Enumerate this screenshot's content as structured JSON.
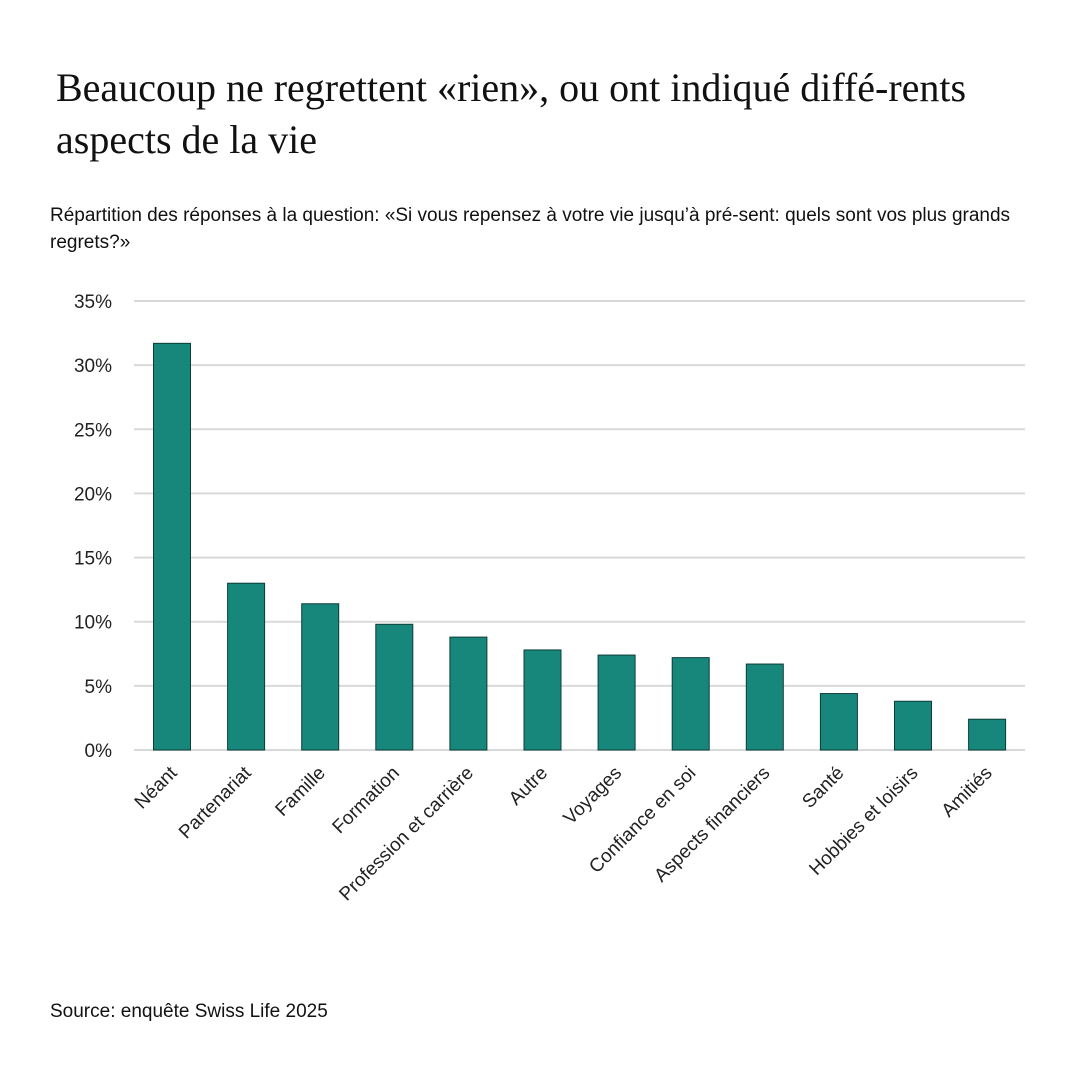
{
  "title": "Beaucoup ne regrettent «rien», ou ont indiqué diffé-rents aspects de la vie",
  "subtitle": "Répartition des réponses à la question: «Si vous repensez à votre vie jusqu’à pré-sent: quels sont vos plus grands regrets?»",
  "source": "Source: enquête Swiss Life 2025",
  "colors": {
    "bar": "#17877c",
    "bar_stroke": "#0d3d38",
    "grid": "#d9d9d9"
  },
  "chart_data": {
    "type": "bar",
    "categories": [
      "Néant",
      "Partenariat",
      "Famille",
      "Formation",
      "Profession et carrière",
      "Autre",
      "Voyages",
      "Confiance en soi",
      "Aspects financiers",
      "Santé",
      "Hobbies et loisirs",
      "Amitiés"
    ],
    "values": [
      31.7,
      13.0,
      11.4,
      9.8,
      8.8,
      7.8,
      7.4,
      7.2,
      6.7,
      4.4,
      3.8,
      2.4
    ],
    "ylim": [
      0,
      35
    ],
    "yticks": [
      "0%",
      "5%",
      "10%",
      "15%",
      "20%",
      "25%",
      "30%",
      "35%"
    ],
    "ytick_values": [
      0,
      5,
      10,
      15,
      20,
      25,
      30,
      35
    ],
    "grid": true,
    "legend": "none"
  }
}
